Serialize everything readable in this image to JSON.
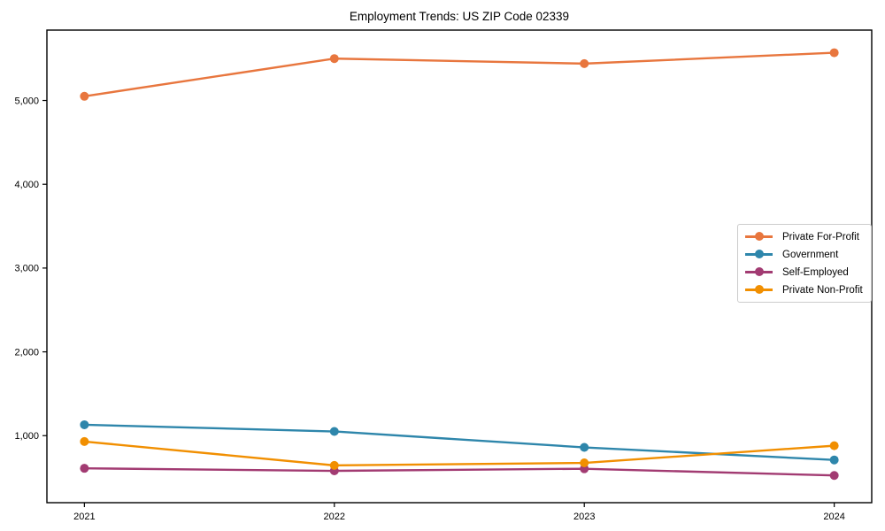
{
  "chart_data": {
    "type": "line",
    "title": "Employment Trends: US ZIP Code 02339",
    "xlabel": "",
    "ylabel": "",
    "x": [
      2021,
      2022,
      2023,
      2024
    ],
    "xtick_labels": [
      "2021",
      "2022",
      "2023",
      "2024"
    ],
    "yticks": [
      1000,
      2000,
      3000,
      4000,
      5000
    ],
    "ytick_labels": [
      "1,000",
      "2,000",
      "3,000",
      "4,000",
      "5,000"
    ],
    "xlim": [
      2020.85,
      2024.15
    ],
    "ylim": [
      200,
      5840
    ],
    "grid": false,
    "legend_position": "center right",
    "marker": "circle",
    "series": [
      {
        "name": "Private For-Profit",
        "color": "#E8763E",
        "values": [
          5050,
          5500,
          5440,
          5570
        ]
      },
      {
        "name": "Government",
        "color": "#2E86AB",
        "values": [
          1130,
          1050,
          860,
          710
        ]
      },
      {
        "name": "Self-Employed",
        "color": "#A23B72",
        "values": [
          610,
          580,
          605,
          525
        ]
      },
      {
        "name": "Private Non-Profit",
        "color": "#F18F01",
        "values": [
          930,
          645,
          675,
          880
        ]
      }
    ]
  }
}
